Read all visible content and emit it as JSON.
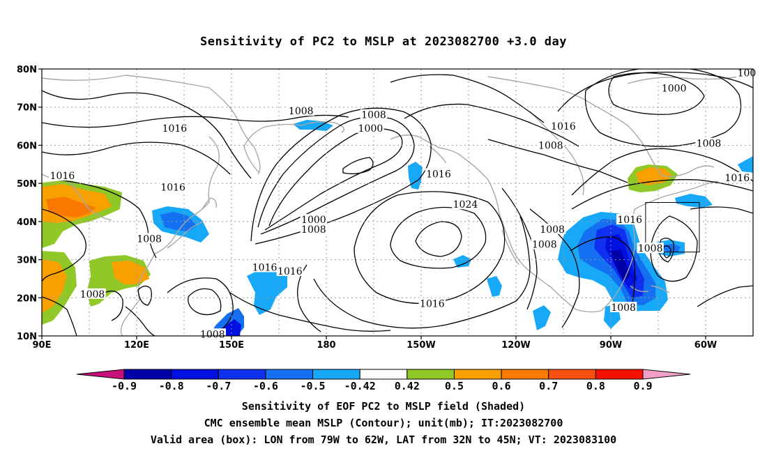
{
  "title": "Sensitivity of PC2 to MSLP at 2023082700 +3.0 day",
  "map": {
    "lat_ticks": [
      "80N",
      "70N",
      "60N",
      "50N",
      "40N",
      "30N",
      "20N",
      "10N"
    ],
    "lon_ticks": [
      "90E",
      "120E",
      "150E",
      "180",
      "150W",
      "120W",
      "90W",
      "60W"
    ],
    "lon_range": [
      90,
      315
    ],
    "lat_range": [
      10,
      80
    ],
    "contour_unit": "mb",
    "contour_labels": [
      {
        "text": "1008",
        "lon": 172,
        "lat": 69
      },
      {
        "text": "1008",
        "lon": 195,
        "lat": 68
      },
      {
        "text": "1000",
        "lon": 194,
        "lat": 64.5
      },
      {
        "text": "1016",
        "lon": 132,
        "lat": 64.5
      },
      {
        "text": "1016",
        "lon": 96.5,
        "lat": 52
      },
      {
        "text": "1016",
        "lon": 131.5,
        "lat": 49
      },
      {
        "text": "1000",
        "lon": 176,
        "lat": 40.5
      },
      {
        "text": "1008",
        "lon": 176,
        "lat": 38
      },
      {
        "text": "1008",
        "lon": 124,
        "lat": 35.5
      },
      {
        "text": "1016",
        "lon": 215.5,
        "lat": 52.5
      },
      {
        "text": "1024",
        "lon": 224,
        "lat": 44.5
      },
      {
        "text": "1016",
        "lon": 160.5,
        "lat": 28
      },
      {
        "text": "1016",
        "lon": 168.5,
        "lat": 27
      },
      {
        "text": "1008",
        "lon": 106,
        "lat": 21
      },
      {
        "text": "1016",
        "lon": 213.5,
        "lat": 18.5
      },
      {
        "text": "1016",
        "lon": 255,
        "lat": 65
      },
      {
        "text": "1008",
        "lon": 251,
        "lat": 60
      },
      {
        "text": "1000",
        "lon": 290,
        "lat": 75
      },
      {
        "text": "1008",
        "lon": 301,
        "lat": 60.5
      },
      {
        "text": "1016",
        "lon": 310,
        "lat": 51.5
      },
      {
        "text": "1016",
        "lon": 276,
        "lat": 40.5
      },
      {
        "text": "1008",
        "lon": 251.5,
        "lat": 38
      },
      {
        "text": "1008",
        "lon": 249,
        "lat": 34
      },
      {
        "text": "1008",
        "lon": 282.5,
        "lat": 33
      },
      {
        "text": "1008",
        "lon": 274,
        "lat": 17.5
      },
      {
        "text": "1008",
        "lon": 144,
        "lat": 10.5
      },
      {
        "text": "100",
        "lon": 313,
        "lat": 79
      }
    ],
    "valid_box": {
      "lon_min": 281,
      "lon_max": 298,
      "lat_min": 32,
      "lat_max": 45
    }
  },
  "colorbar": {
    "labels": [
      "-0.9",
      "-0.8",
      "-0.7",
      "-0.6",
      "-0.5",
      "-0.42",
      "0.42",
      "0.5",
      "0.6",
      "0.7",
      "0.8",
      "0.9"
    ],
    "colors": [
      "#0000a8",
      "#0010e0",
      "#1030f0",
      "#1470f0",
      "#18a8f8",
      "#ffffff",
      "#90c828",
      "#f8a000",
      "#f87800",
      "#f85010",
      "#f81000"
    ],
    "low_extension_color": "#c8107a",
    "high_extension_color": "#f0a0c8"
  },
  "captions": [
    "Sensitivity of EOF PC2 to MSLP field (Shaded)",
    "CMC ensemble mean MSLP (Contour); unit(mb); IT:2023082700",
    "Valid area (box): LON from 79W to 62W, LAT from 32N to 45N; VT: 2023083100"
  ]
}
